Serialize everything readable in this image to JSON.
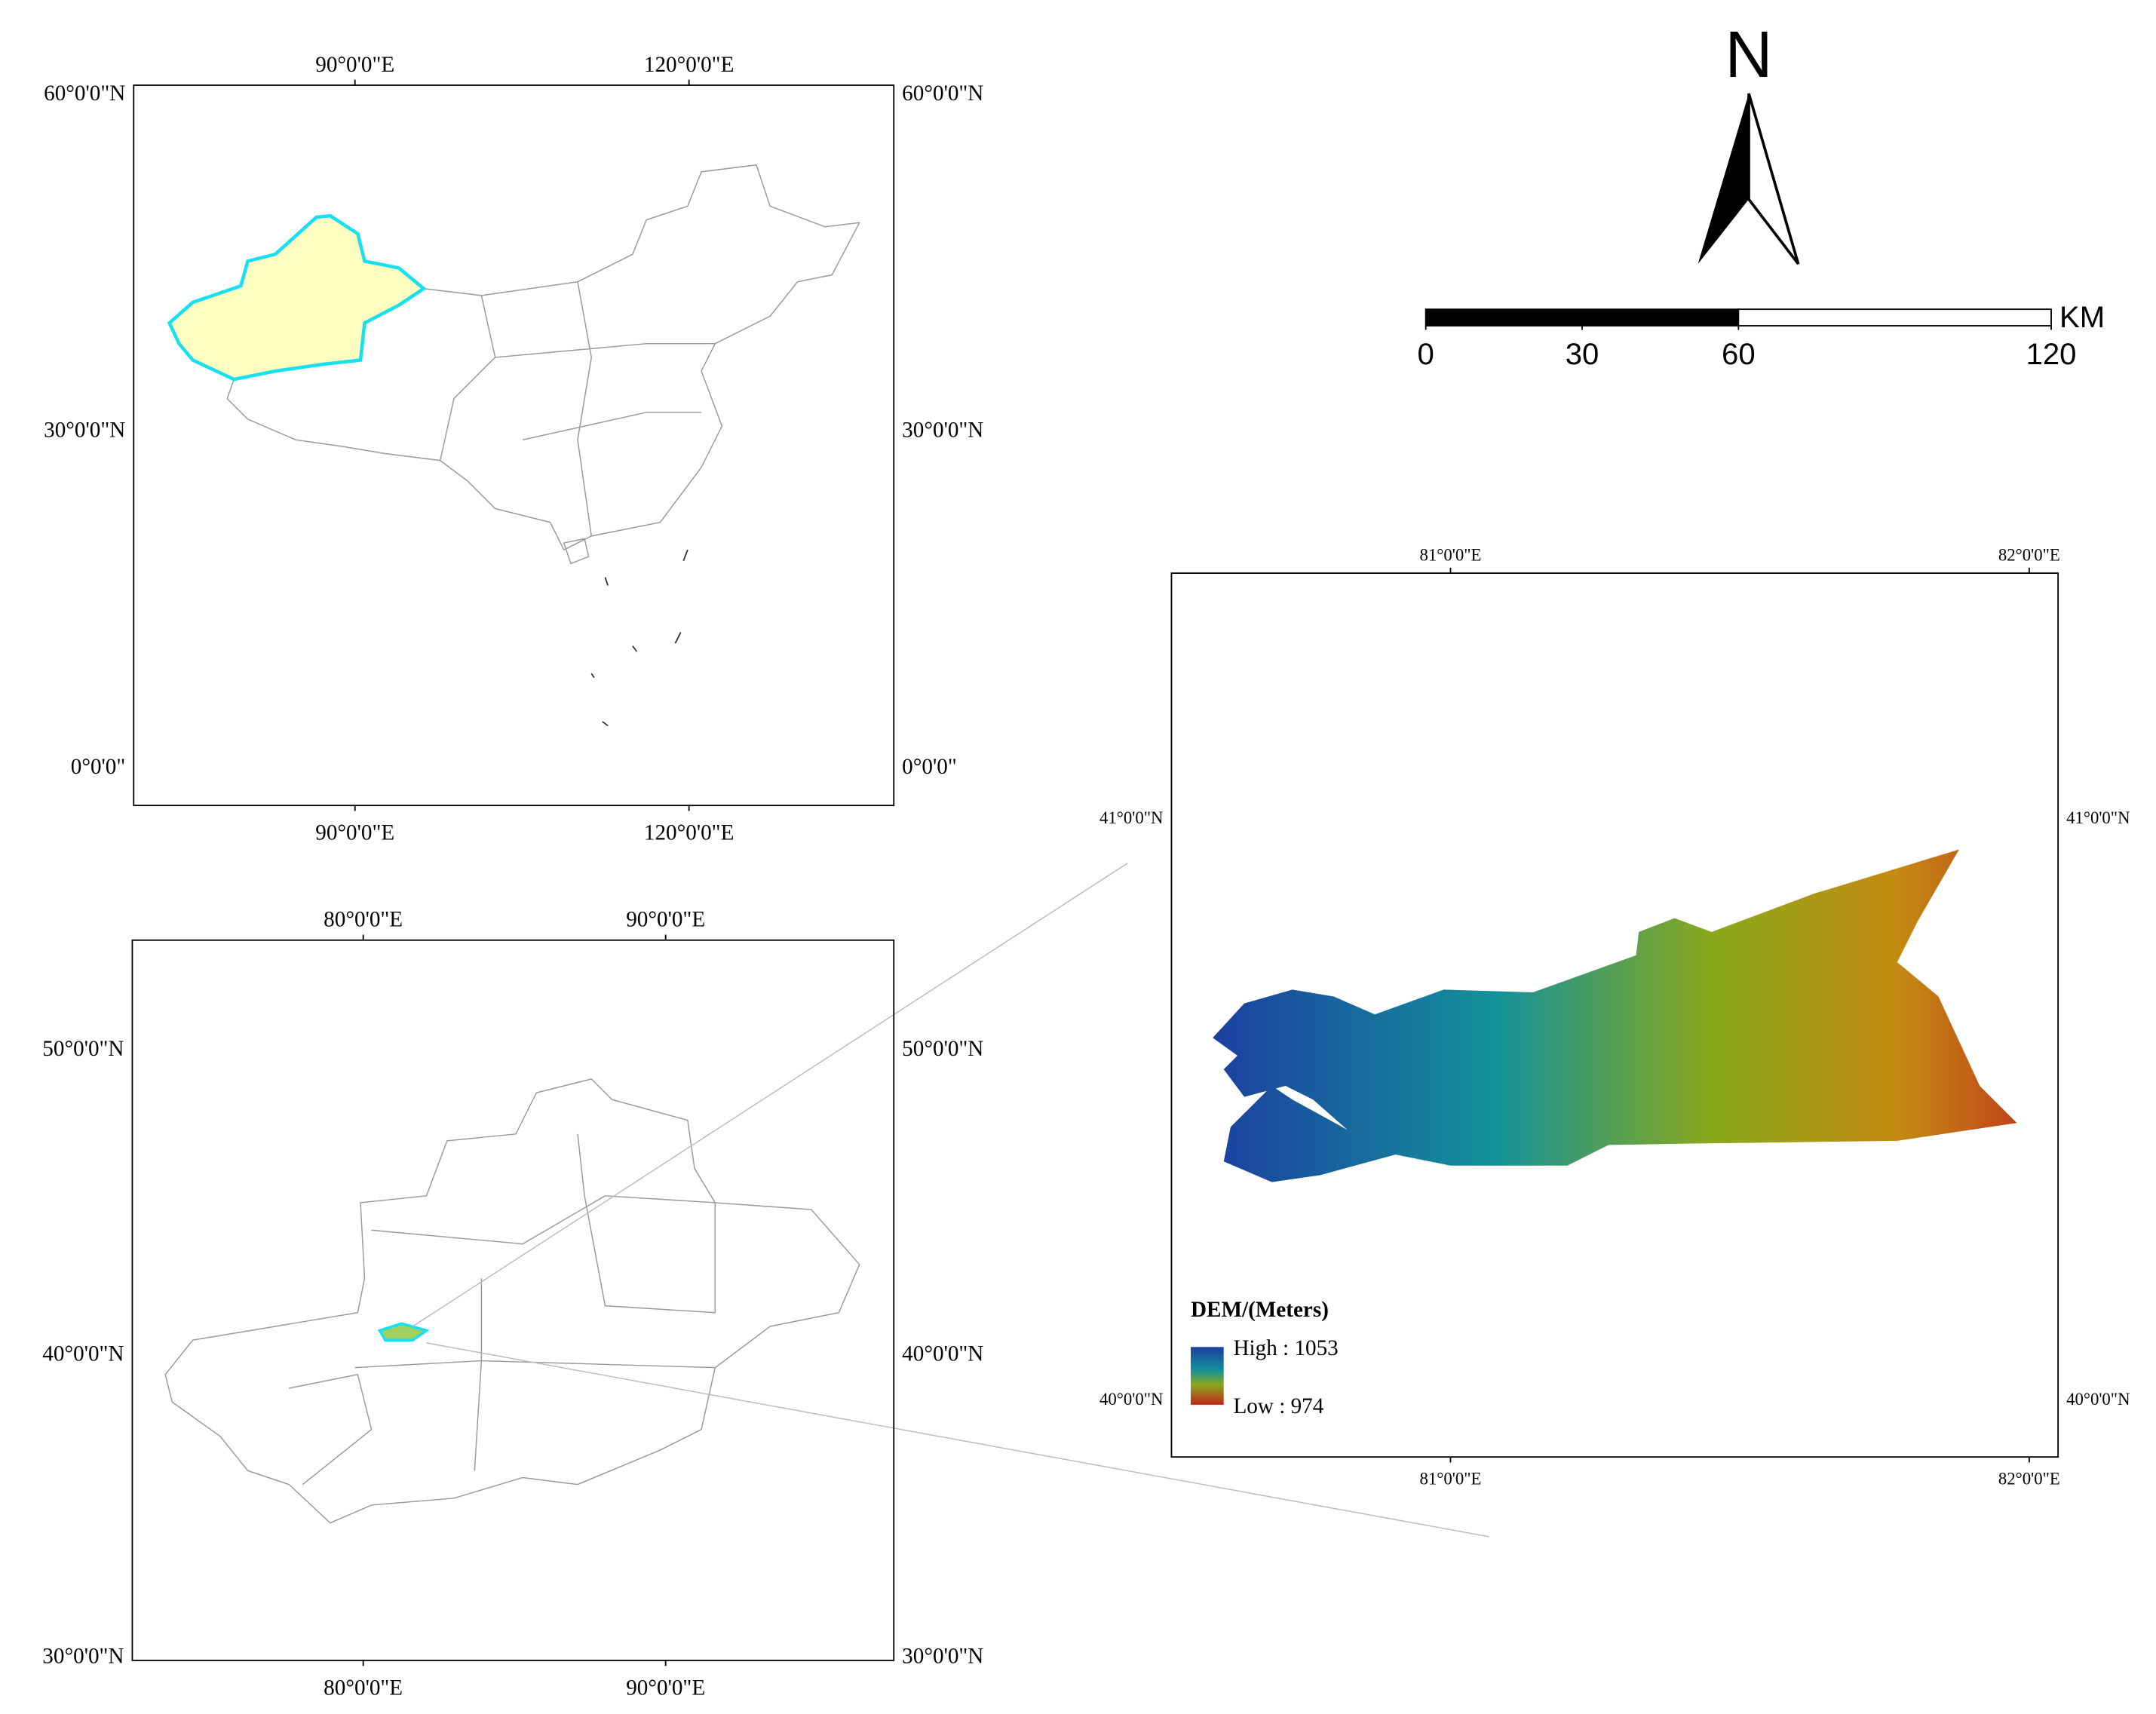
{
  "north_label": "N",
  "scale_bar": {
    "ticks": [
      0,
      30,
      60,
      120
    ],
    "unit": "KM"
  },
  "maps": [
    {
      "lon_labels": [
        "90°0'0\"E",
        "120°0'0\"E"
      ],
      "lat_labels": [
        "60°0'0\"N",
        "30°0'0\"N",
        "0°0'0\""
      ]
    },
    {
      "lon_labels": [
        "80°0'0\"E",
        "90°0'0\"E"
      ],
      "lat_labels": [
        "50°0'0\"N",
        "40°0'0\"N",
        "30°0'0\"N"
      ]
    },
    {
      "lon_labels": [
        "81°0'0\"E",
        "82°0'0\"E"
      ],
      "lat_labels": [
        "41°0'0\"N",
        "40°0'0\"N"
      ]
    }
  ],
  "legend": {
    "title": "DEM/(Meters)",
    "high": "High : 1053",
    "low": "Low : 974"
  }
}
